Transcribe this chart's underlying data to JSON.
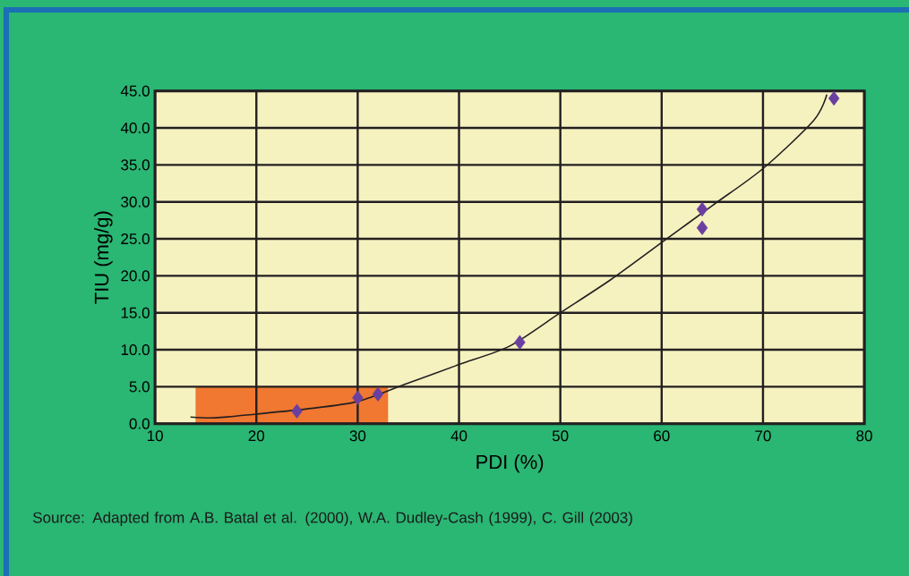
{
  "chart_data": {
    "type": "scatter",
    "xlabel": "PDI (%)",
    "ylabel": "TIU (mg/g)",
    "annotations": [
      "Source: Adapted from A.B. Batal et al. (2000), W.A. Dudley-Cash (1999), C. Gill (2003)"
    ],
    "xlim": [
      10,
      80
    ],
    "xticks": [
      10,
      20,
      30,
      40,
      50,
      60,
      70,
      80
    ],
    "ylim": [
      0,
      45
    ],
    "yticks": [
      {
        "value": 0,
        "label": "0.0"
      },
      {
        "value": 5,
        "label": "5.0"
      },
      {
        "value": 10,
        "label": "10.0"
      },
      {
        "value": 15,
        "label": "15.0"
      },
      {
        "value": 20,
        "label": "20.0"
      },
      {
        "value": 25,
        "label": "25.0"
      },
      {
        "value": 30,
        "label": "30.0"
      },
      {
        "value": 35,
        "label": "35.0"
      },
      {
        "value": 40,
        "label": "40.0"
      },
      {
        "value": 45,
        "label": "45.0"
      }
    ],
    "grid": true,
    "marker": "diamond",
    "bands": [
      {
        "axis": "x",
        "from": 14,
        "to": 33,
        "color": "#f07830"
      }
    ],
    "series": [
      {
        "color": "#6a3fa0",
        "x": [
          24,
          30,
          32,
          46,
          64,
          64,
          77
        ],
        "values": [
          1.7,
          3.5,
          4,
          11,
          29,
          26.5,
          44
        ]
      },
      {
        "type": "line",
        "color": "#231f20",
        "marker": "none",
        "x": [
          13.5,
          16,
          20,
          25,
          30,
          35,
          40,
          45,
          50,
          55,
          60,
          65,
          70,
          75,
          76.3
        ],
        "values": [
          0.9,
          0.8,
          1.3,
          2,
          3,
          5.5,
          8,
          10.5,
          15,
          19.5,
          24.5,
          29.5,
          34.5,
          41,
          44.5
        ]
      }
    ]
  }
}
